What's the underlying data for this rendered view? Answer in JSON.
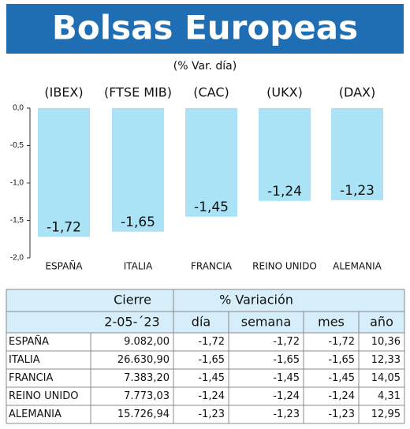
{
  "chart_data": {
    "type": "bar",
    "title": "Bolsas Europeas",
    "subtitle": "(% Var. día)",
    "categories": [
      "ESPAÑA",
      "ITALIA",
      "FRANCIA",
      "REINO UNIDO",
      "ALEMANIA"
    ],
    "indices": [
      "(IBEX)",
      "(FTSE MIB)",
      "(CAC)",
      "(UKX)",
      "(DAX)"
    ],
    "values": [
      -1.72,
      -1.65,
      -1.45,
      -1.24,
      -1.23
    ],
    "value_labels": [
      "-1,72",
      "-1,65",
      "-1,45",
      "-1,24",
      "-1,23"
    ],
    "color": "#a9e3f5",
    "ylim": [
      -2.0,
      0
    ],
    "yticks": [
      {
        "value": 0,
        "label": "0,0"
      },
      {
        "value": -0.5,
        "label": "-0,5"
      },
      {
        "value": -1.0,
        "label": "-1,0"
      },
      {
        "value": -1.5,
        "label": "-1,5"
      },
      {
        "value": -2.0,
        "label": "-2,0"
      }
    ]
  },
  "table": {
    "header_top": [
      "Cierre",
      "% Variación"
    ],
    "header": [
      "2-05-´23",
      "día",
      "semana",
      "mes",
      "año"
    ],
    "rows": [
      [
        "ESPAÑA",
        "9.082,00",
        "-1,72",
        "-1,72",
        "-1,72",
        "10,36"
      ],
      [
        "ITALIA",
        "26.630,90",
        "-1,65",
        "-1,65",
        "-1,65",
        "12,33"
      ],
      [
        "FRANCIA",
        "7.383,20",
        "-1,45",
        "-1,45",
        "-1,45",
        "14,05"
      ],
      [
        "REINO UNIDO",
        "7.773,03",
        "-1,24",
        "-1,24",
        "-1,24",
        "4,31"
      ],
      [
        "ALEMANIA",
        "15.726,94",
        "-1,23",
        "-1,23",
        "-1,23",
        "12,95"
      ]
    ]
  }
}
